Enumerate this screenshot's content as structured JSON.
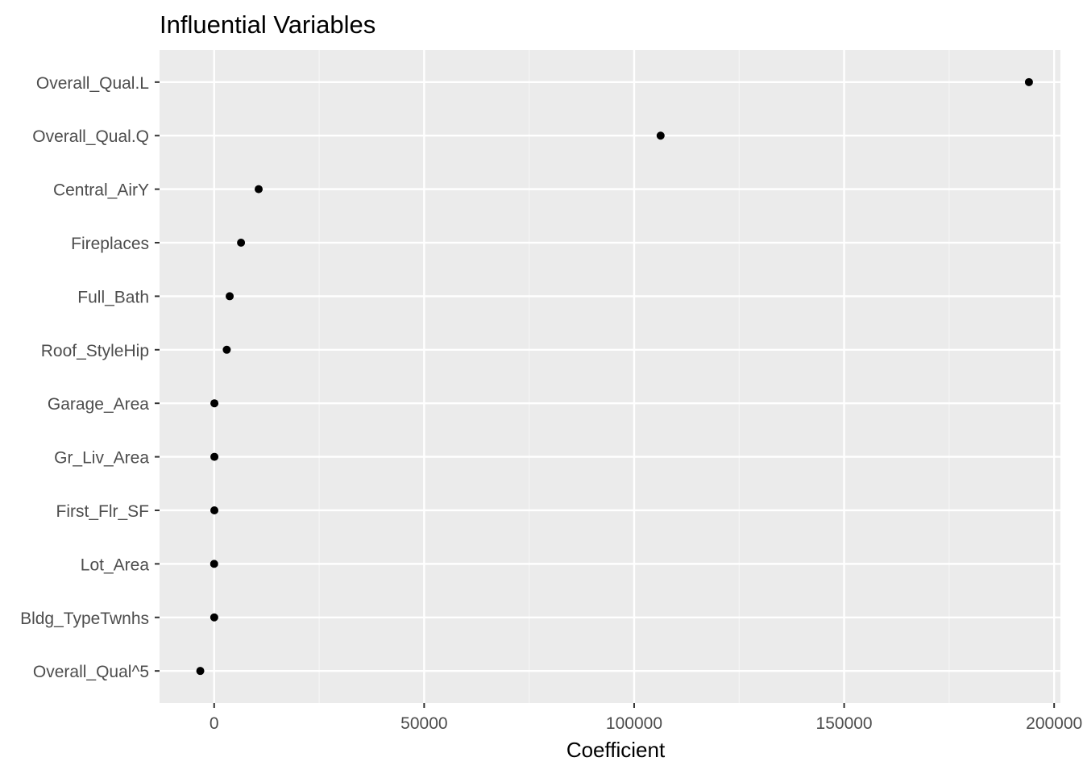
{
  "chart_data": {
    "type": "scatter",
    "title": "Influential Variables",
    "xlabel": "Coefficient",
    "ylabel": "",
    "categories": [
      "Overall_Qual.L",
      "Overall_Qual.Q",
      "Central_AirY",
      "Fireplaces",
      "Full_Bath",
      "Roof_StyleHip",
      "Garage_Area",
      "Gr_Liv_Area",
      "First_Flr_SF",
      "Lot_Area",
      "Bldg_TypeTwnhs",
      "Overall_Qual^5"
    ],
    "values": [
      194000,
      106300,
      10600,
      6400,
      3700,
      3000,
      60,
      60,
      50,
      1,
      20,
      -3300
    ],
    "xlim": [
      -13000,
      201500
    ],
    "xticks": [
      0,
      50000,
      100000,
      150000,
      200000
    ],
    "xtick_labels": [
      "0",
      "50000",
      "100000",
      "150000",
      "200000"
    ],
    "grid": true,
    "legend": "none",
    "colors": {
      "panel_background": "#ebebeb",
      "grid_major": "#ffffff",
      "grid_minor": "#f5f5f5",
      "point": "#000000",
      "tick_text": "#4d4d4d",
      "tick_mark": "#333333"
    }
  }
}
